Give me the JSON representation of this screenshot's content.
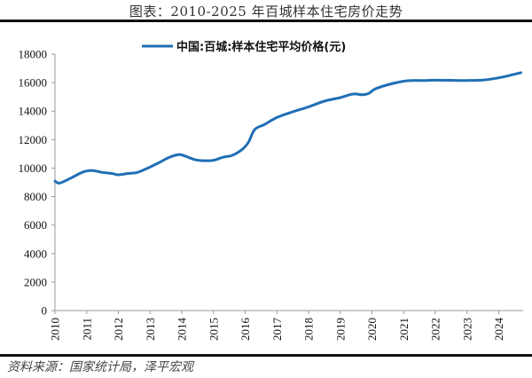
{
  "title": "图表：2010-2025 年百城样本住宅房价走势",
  "source": "资料来源：国家统计局，泽平宏观",
  "colors": {
    "line": "#1f6fb5",
    "axis": "#9a9a9a",
    "rule": "#111111"
  },
  "chart_data": {
    "type": "line",
    "title": "图表：2010-2025 年百城样本住宅房价走势",
    "xlabel": "",
    "ylabel": "",
    "ylim": [
      0,
      18000
    ],
    "yticks": [
      0,
      2000,
      4000,
      6000,
      8000,
      10000,
      12000,
      14000,
      16000,
      18000
    ],
    "xticks": [
      "2010",
      "2011",
      "2012",
      "2013",
      "2014",
      "2015",
      "2016",
      "2017",
      "2018",
      "2019",
      "2020",
      "2021",
      "2022",
      "2023",
      "2024"
    ],
    "grid": false,
    "legend_position": "top",
    "series": [
      {
        "name": "中国:百城:样本住宅平均价格(元)",
        "x": [
          2010.0,
          2010.15,
          2010.5,
          2010.8,
          2011.0,
          2011.2,
          2011.5,
          2011.8,
          2012.0,
          2012.3,
          2012.6,
          2013.0,
          2013.3,
          2013.6,
          2013.9,
          2014.1,
          2014.4,
          2014.7,
          2015.0,
          2015.3,
          2015.6,
          2015.9,
          2016.1,
          2016.3,
          2016.6,
          2017.0,
          2017.5,
          2018.0,
          2018.5,
          2019.0,
          2019.4,
          2019.7,
          2019.9,
          2020.1,
          2020.5,
          2021.0,
          2021.3,
          2021.7,
          2022.0,
          2022.5,
          2023.0,
          2023.5,
          2023.9,
          2024.3,
          2024.7
        ],
        "values": [
          9090,
          8950,
          9300,
          9650,
          9800,
          9830,
          9700,
          9620,
          9530,
          9620,
          9700,
          10080,
          10400,
          10750,
          10950,
          10850,
          10600,
          10520,
          10550,
          10760,
          10900,
          11300,
          11800,
          12700,
          13050,
          13550,
          13950,
          14300,
          14700,
          14950,
          15200,
          15150,
          15250,
          15550,
          15850,
          16100,
          16150,
          16150,
          16170,
          16160,
          16150,
          16180,
          16300,
          16480,
          16700
        ]
      }
    ]
  },
  "legend": {
    "label": "中国:百城:样本住宅平均价格(元)"
  }
}
